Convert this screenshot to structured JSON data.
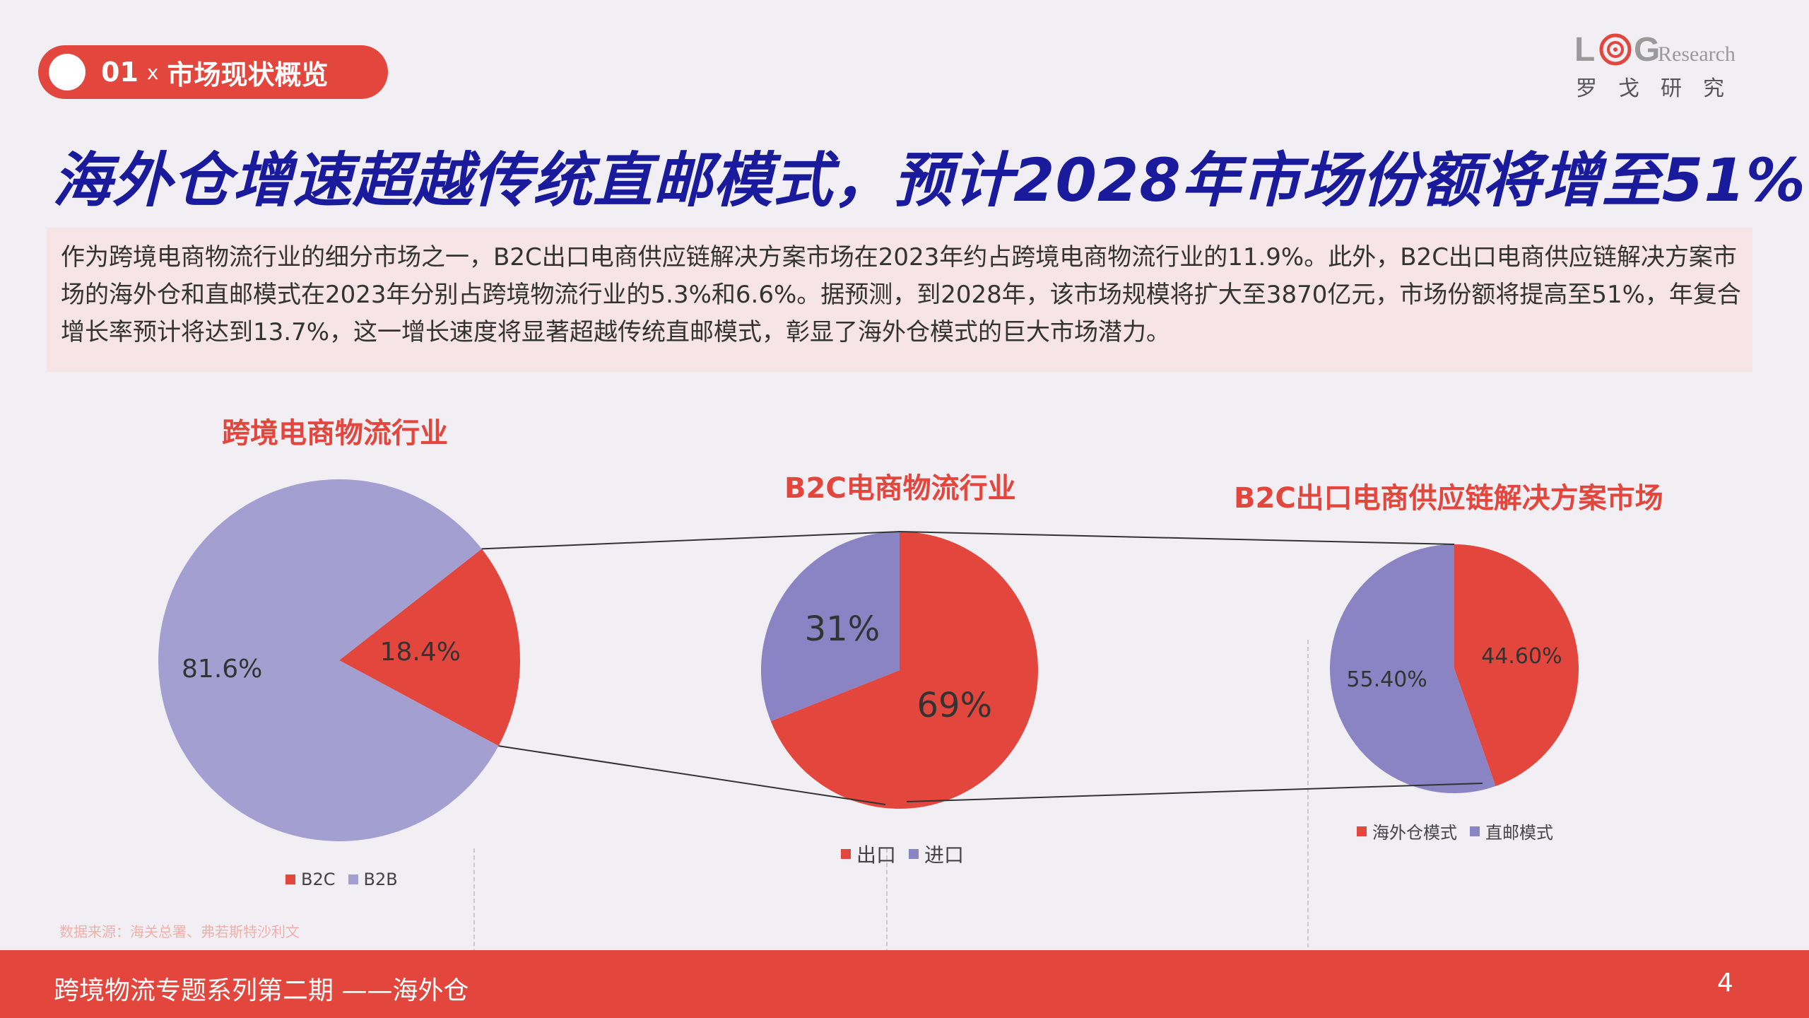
{
  "header": {
    "section_number": "01",
    "section_separator": "x",
    "section_label": "市场现状概览",
    "logo_text_l": "L",
    "logo_text_g": "G",
    "logo_text_research": "Research",
    "logo_cn": "罗戈研究"
  },
  "title": "海外仓增速超越传统直邮模式，预计2028年市场份额将增至51%",
  "intro": "作为跨境电商物流行业的细分市场之一，B2C出口电商供应链解决方案市场在2023年约占跨境电商物流行业的11.9%。此外，B2C出口电商供应链解决方案市场的海外仓和直邮模式在2023年分别占跨境物流行业的5.3%和6.6%。据预测，到2028年，该市场规模将扩大至3870亿元，市场份额将提高至51%，年复合增长率预计将达到13.7%，这一增长速度将显著超越传统直邮模式，彰显了海外仓模式的巨大市场潜力。",
  "colors": {
    "red": "#e2463c",
    "purple_light": "#a39fd0",
    "purple": "#8a84c4",
    "title_blue": "#1a1a9c"
  },
  "chart_data": [
    {
      "type": "pie",
      "title": "跨境电商物流行业",
      "slices": [
        {
          "label": "B2C",
          "value": 18.4,
          "display": "18.4%",
          "color": "#e2463c"
        },
        {
          "label": "B2B",
          "value": 81.6,
          "display": "81.6%",
          "color": "#a39fd0"
        }
      ],
      "legend": [
        "B2C",
        "B2B"
      ]
    },
    {
      "type": "pie",
      "title": "B2C电商物流行业",
      "slices": [
        {
          "label": "出口",
          "value": 69,
          "display": "69%",
          "color": "#e2463c"
        },
        {
          "label": "进口",
          "value": 31,
          "display": "31%",
          "color": "#8a84c4"
        }
      ],
      "legend": [
        "出口",
        "进口"
      ]
    },
    {
      "type": "pie",
      "title": "B2C出口电商供应链解决方案市场",
      "slices": [
        {
          "label": "海外仓模式",
          "value": 44.6,
          "display": "44.60%",
          "color": "#e2463c"
        },
        {
          "label": "直邮模式",
          "value": 55.4,
          "display": "55.40%",
          "color": "#8a84c4"
        }
      ],
      "legend": [
        "海外仓模式",
        "直邮模式"
      ]
    }
  ],
  "source_note": "数据来源：海关总署、弗若斯特沙利文",
  "footer": {
    "series_title": "跨境物流专题系列第二期 ——海外仓",
    "page_number": "4"
  }
}
